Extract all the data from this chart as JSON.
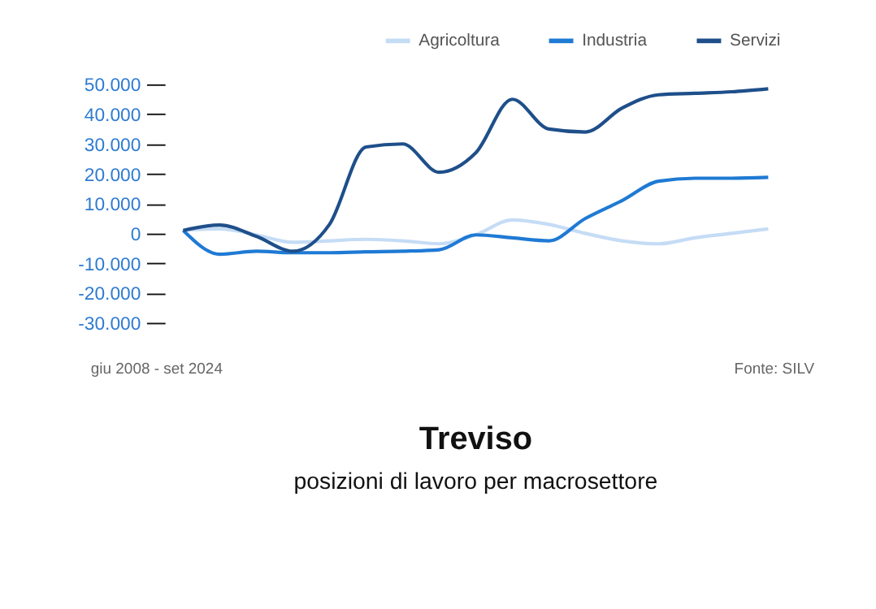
{
  "chart_data": {
    "type": "line",
    "title": "Treviso",
    "subtitle": "posizioni di lavoro per macrosettore",
    "annotations": [
      "giu 2008 - set 2024",
      "Fonte: SILV"
    ],
    "categories": [
      null,
      null,
      null,
      null,
      null,
      null,
      null,
      null,
      null,
      null,
      null,
      null,
      null,
      null,
      null,
      null,
      null
    ],
    "series": [
      {
        "name": "Agricoltura",
        "color": "#c5dcf5",
        "values": [
          1000,
          1500,
          -500,
          -3000,
          -2500,
          -2000,
          -2500,
          -3500,
          -500,
          4500,
          3000,
          0,
          -2500,
          -3500,
          -1500,
          0,
          1500
        ]
      },
      {
        "name": "Industria",
        "color": "#1f7ad4",
        "values": [
          1000,
          -7000,
          -6000,
          -6500,
          -6500,
          -6200,
          -6000,
          -5500,
          -500,
          -1500,
          -2500,
          5000,
          11000,
          17500,
          18500,
          18500,
          18800
        ]
      },
      {
        "name": "Servizi",
        "color": "#1e4f8a",
        "values": [
          1000,
          2800,
          -1000,
          -6000,
          3000,
          29000,
          30000,
          20500,
          27000,
          45000,
          35000,
          34000,
          42000,
          46500,
          47000,
          47500,
          48500
        ]
      }
    ],
    "ylim": [
      -30000,
      50000
    ],
    "yticks": [
      {
        "value": 50000,
        "label": "50.000"
      },
      {
        "value": 40000,
        "label": "40.000"
      },
      {
        "value": 30000,
        "label": "30.000"
      },
      {
        "value": 20000,
        "label": "20.000"
      },
      {
        "value": 10000,
        "label": "10.000"
      },
      {
        "value": 0,
        "label": "0"
      },
      {
        "value": -10000,
        "label": "-10.000"
      },
      {
        "value": -20000,
        "label": "-20.000"
      },
      {
        "value": -30000,
        "label": "-30.000"
      }
    ],
    "tick_labels": "y",
    "grid": false,
    "legend": "top right",
    "marker": "none",
    "line_style": "solid"
  }
}
